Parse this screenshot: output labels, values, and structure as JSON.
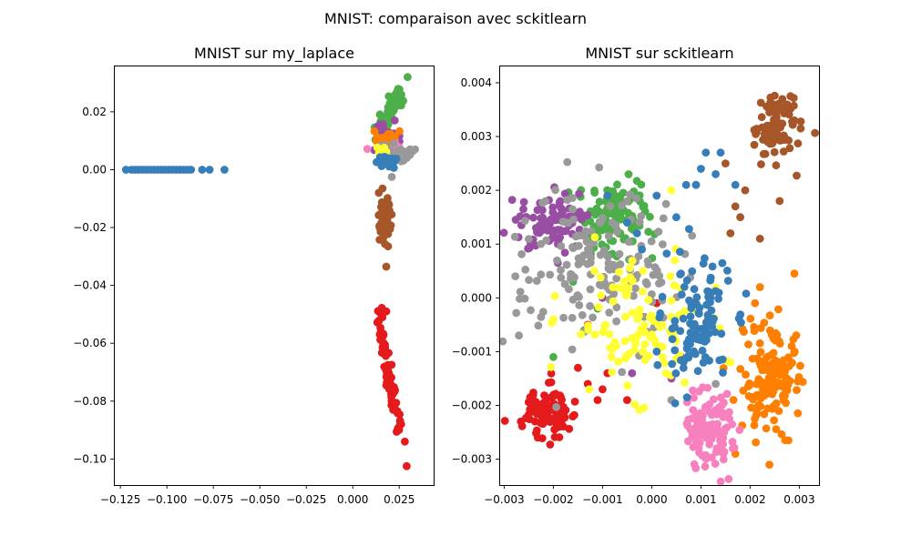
{
  "figure": {
    "suptitle": "MNIST: comparaison avec sckitlearn"
  },
  "chart_data": [
    {
      "type": "scatter",
      "title": "MNIST sur my_laplace",
      "xlabel": "",
      "ylabel": "",
      "xlim": [
        -0.1285,
        0.0435
      ],
      "ylim": [
        -0.109,
        0.036
      ],
      "xticks": [
        -0.125,
        -0.1,
        -0.075,
        -0.05,
        -0.025,
        0.0,
        0.025
      ],
      "xtick_labels": [
        "−0.125",
        "−0.100",
        "−0.075",
        "−0.050",
        "−0.025",
        "0.000",
        "0.025"
      ],
      "yticks": [
        -0.1,
        -0.08,
        -0.06,
        -0.04,
        -0.02,
        0.0,
        0.02
      ],
      "ytick_labels": [
        "−0.10",
        "−0.08",
        "−0.06",
        "−0.04",
        "−0.02",
        "0.00",
        "0.02"
      ],
      "grid": false,
      "legend": "none",
      "clusters": [
        {
          "color": "#e41a1c",
          "kind": "line",
          "from": [
            0.013,
            -0.047
          ],
          "to": [
            0.025,
            -0.091
          ],
          "n": 70,
          "spread": [
            0.0012,
            0.001
          ],
          "extra": [
            [
              0.029,
              -0.1025
            ],
            [
              0.028,
              -0.094
            ],
            [
              0.026,
              -0.088
            ],
            [
              0.018,
              -0.049
            ]
          ]
        },
        {
          "color": "#a65628",
          "kind": "blob",
          "center": [
            0.017,
            -0.017
          ],
          "sd": [
            0.0018,
            0.0038
          ],
          "n": 55,
          "extra": [
            [
              0.018,
              -0.0335
            ],
            [
              0.019,
              -0.0265
            ],
            [
              0.014,
              -0.008
            ],
            [
              0.016,
              -0.0065
            ]
          ]
        },
        {
          "color": "#4daf4a",
          "kind": "line",
          "from": [
            0.014,
            0.014
          ],
          "to": [
            0.026,
            0.026
          ],
          "n": 60,
          "spread": [
            0.0015,
            0.0015
          ],
          "extra": [
            [
              0.0295,
              0.032
            ]
          ]
        },
        {
          "color": "#984ea3",
          "kind": "blob",
          "center": [
            0.019,
            0.012
          ],
          "sd": [
            0.0035,
            0.0018
          ],
          "n": 30,
          "extra": []
        },
        {
          "color": "#f781bf",
          "kind": "blob",
          "center": [
            0.018,
            0.009
          ],
          "sd": [
            0.003,
            0.0012
          ],
          "n": 25,
          "extra": []
        },
        {
          "color": "#ff7f00",
          "kind": "blob",
          "center": [
            0.019,
            0.011
          ],
          "sd": [
            0.0028,
            0.0014
          ],
          "n": 18,
          "extra": []
        },
        {
          "color": "#999999",
          "kind": "blob",
          "center": [
            0.024,
            0.0055
          ],
          "sd": [
            0.0035,
            0.0016
          ],
          "n": 25,
          "extra": [
            [
              0.0335,
              0.007
            ],
            [
              0.021,
              -0.0025
            ]
          ]
        },
        {
          "color": "#ffff33",
          "kind": "blob",
          "center": [
            0.016,
            0.007
          ],
          "sd": [
            0.0015,
            0.001
          ],
          "n": 6,
          "extra": []
        },
        {
          "color": "#377eb8",
          "kind": "blob",
          "center": [
            0.018,
            0.003
          ],
          "sd": [
            0.0028,
            0.0012
          ],
          "n": 22,
          "extra": []
        },
        {
          "color": "#377eb8",
          "kind": "row",
          "points": [
            [
              -0.122,
              0.0
            ],
            [
              -0.119,
              0.0
            ],
            [
              -0.117,
              0.0
            ],
            [
              -0.115,
              0.0
            ],
            [
              -0.113,
              0.0
            ],
            [
              -0.111,
              0.0
            ],
            [
              -0.109,
              0.0
            ],
            [
              -0.107,
              0.0
            ],
            [
              -0.105,
              0.0
            ],
            [
              -0.103,
              0.0
            ],
            [
              -0.101,
              0.0
            ],
            [
              -0.099,
              0.0
            ],
            [
              -0.097,
              0.0
            ],
            [
              -0.095,
              0.0
            ],
            [
              -0.093,
              0.0
            ],
            [
              -0.091,
              0.0
            ],
            [
              -0.089,
              0.0
            ],
            [
              -0.087,
              0.0
            ],
            [
              -0.081,
              0.0
            ],
            [
              -0.077,
              0.0
            ],
            [
              -0.069,
              0.0
            ]
          ]
        }
      ]
    },
    {
      "type": "scatter",
      "title": "MNIST sur sckitlearn",
      "xlabel": "",
      "ylabel": "",
      "xlim": [
        -0.0031,
        0.0034
      ],
      "ylim": [
        -0.00348,
        0.00432
      ],
      "xticks": [
        -0.003,
        -0.002,
        -0.001,
        0.0,
        0.001,
        0.002,
        0.003
      ],
      "xtick_labels": [
        "−0.003",
        "−0.002",
        "−0.001",
        "0.000",
        "0.001",
        "0.002",
        "0.003"
      ],
      "yticks": [
        -0.003,
        -0.002,
        -0.001,
        0.0,
        0.001,
        0.002,
        0.003,
        0.004
      ],
      "ytick_labels": [
        "−0.003",
        "−0.002",
        "−0.001",
        "0.000",
        "0.001",
        "0.002",
        "0.003",
        "0.004"
      ],
      "grid": false,
      "legend": "none",
      "clusters": [
        {
          "color": "#a65628",
          "kind": "blob",
          "center": [
            0.0025,
            0.0032
          ],
          "sd": [
            0.00025,
            0.00035
          ],
          "n": 90,
          "extra": [
            [
              0.0016,
              0.0012
            ],
            [
              0.0022,
              0.0011
            ],
            [
              0.0029,
              0.0033
            ],
            [
              0.0018,
              0.0015
            ],
            [
              0.0015,
              0.0025
            ],
            [
              0.0026,
              0.0018
            ],
            [
              0.0019,
              0.002
            ],
            [
              0.0017,
              0.0017
            ]
          ]
        },
        {
          "color": "#e41a1c",
          "kind": "blob",
          "center": [
            -0.0021,
            -0.0021
          ],
          "sd": [
            0.00022,
            0.00022
          ],
          "n": 110,
          "extra": [
            [
              -0.0015,
              -0.0013
            ],
            [
              -0.0013,
              -0.0016
            ],
            [
              -0.001,
              -0.0017
            ],
            [
              -0.0011,
              -0.0019
            ],
            [
              -0.0009,
              -0.0014
            ],
            [
              -0.0005,
              -0.0019
            ],
            [
              -0.0013,
              -0.0005
            ],
            [
              0.0001,
              -0.0001
            ]
          ]
        },
        {
          "color": "#ff7f00",
          "kind": "blob",
          "center": [
            0.0024,
            -0.0015
          ],
          "sd": [
            0.00033,
            0.00055
          ],
          "n": 150,
          "extra": [
            [
              0.0029,
              0.00045
            ],
            [
              0.0021,
              -0.0001
            ],
            [
              0.0014,
              -0.0025
            ],
            [
              0.0017,
              -0.0029
            ],
            [
              0.0022,
              0.0002
            ]
          ]
        },
        {
          "color": "#f781bf",
          "kind": "blob",
          "center": [
            0.0012,
            -0.0025
          ],
          "sd": [
            0.00025,
            0.00035
          ],
          "n": 110,
          "extra": []
        },
        {
          "color": "#4daf4a",
          "kind": "blob",
          "center": [
            -0.0008,
            0.0015
          ],
          "sd": [
            0.0004,
            0.00035
          ],
          "n": 110,
          "extra": [
            [
              -0.002,
              -0.0011
            ],
            [
              -0.0016,
              0.0003
            ],
            [
              -0.0011,
              -0.0002
            ]
          ]
        },
        {
          "color": "#984ea3",
          "kind": "blob",
          "center": [
            -0.002,
            0.0014
          ],
          "sd": [
            0.00032,
            0.00025
          ],
          "n": 95,
          "extra": [
            [
              -0.001,
              0.0
            ],
            [
              -0.0004,
              -0.0014
            ],
            [
              0.0004,
              -0.0015
            ],
            [
              0.0006,
              -0.0011
            ]
          ]
        },
        {
          "color": "#999999",
          "kind": "blob",
          "center": [
            -0.0012,
            0.0006
          ],
          "sd": [
            0.0009,
            0.0007
          ],
          "n": 170,
          "extra": [
            [
              -0.0027,
              -0.0007
            ],
            [
              0.0009,
              0.0021
            ],
            [
              0.0004,
              -0.0019
            ],
            [
              0.0013,
              -0.0016
            ]
          ]
        },
        {
          "color": "#ffff33",
          "kind": "blob",
          "center": [
            -0.0003,
            -0.0005
          ],
          "sd": [
            0.0007,
            0.0006
          ],
          "n": 110,
          "extra": [
            [
              0.0004,
              0.002
            ],
            [
              -0.002,
              -0.0004
            ]
          ]
        },
        {
          "color": "#377eb8",
          "kind": "blob",
          "center": [
            0.0009,
            -0.0005
          ],
          "sd": [
            0.00035,
            0.0006
          ],
          "n": 110,
          "extra": [
            [
              0.0011,
              0.0027
            ],
            [
              0.0014,
              0.0027
            ],
            [
              0.001,
              0.0024
            ],
            [
              0.0013,
              0.0023
            ],
            [
              0.0007,
              0.0021
            ],
            [
              0.0009,
              0.0021
            ],
            [
              0.0017,
              0.0021
            ],
            [
              0.0001,
              0.0019
            ],
            [
              0.0005,
              0.0015
            ],
            [
              -0.0005,
              0.0014
            ],
            [
              -0.0003,
              0.0012
            ],
            [
              -0.0002,
              0.0009
            ],
            [
              -0.0009,
              0.0019
            ],
            [
              0.0001,
              -0.001
            ]
          ]
        }
      ]
    }
  ]
}
